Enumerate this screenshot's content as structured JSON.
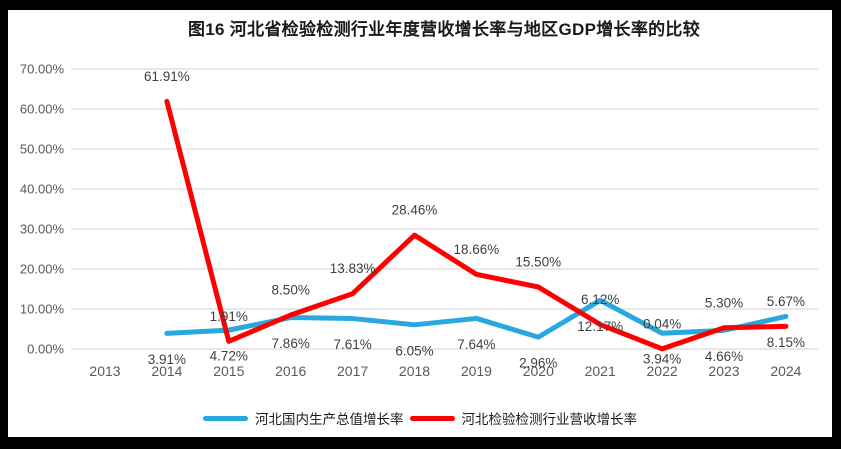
{
  "chart_data": {
    "type": "line",
    "title": "图16 河北省检验检测行业年度营收增长率与地区GDP增长率的比较",
    "categories": [
      "2013",
      "2014",
      "2015",
      "2016",
      "2017",
      "2018",
      "2019",
      "2020",
      "2021",
      "2022",
      "2023",
      "2024"
    ],
    "y_axis": {
      "min": 0,
      "max": 70,
      "step": 10,
      "tick_labels": [
        "0.00%",
        "10.00%",
        "20.00%",
        "30.00%",
        "40.00%",
        "50.00%",
        "60.00%",
        "70.00%"
      ],
      "format": "percent"
    },
    "grid": true,
    "legend_position": "bottom",
    "colors": {
      "gdp_line": "#29a8e0",
      "revenue_line": "#ff0000",
      "gridline": "#d9d9d9",
      "axis_text": "#595959",
      "data_label_text": "#404040",
      "frame": "#000000"
    },
    "series": [
      {
        "name": "河北国内生产总值增长率",
        "color": "#29a8e0",
        "label_side": "below",
        "years": [
          "2014",
          "2015",
          "2016",
          "2017",
          "2018",
          "2019",
          "2020",
          "2021",
          "2022",
          "2023",
          "2024"
        ],
        "values": [
          3.91,
          4.72,
          7.86,
          7.61,
          6.05,
          7.64,
          2.96,
          12.17,
          3.94,
          4.66,
          8.15
        ],
        "labels": [
          "3.91%",
          "4.72%",
          "7.86%",
          "7.61%",
          "6.05%",
          "7.64%",
          "2.96%",
          "12.17%",
          "3.94%",
          "4.66%",
          "8.15%"
        ]
      },
      {
        "name": "河北检验检测行业营收增长率",
        "color": "#ff0000",
        "label_side": "above",
        "years": [
          "2014",
          "2015",
          "2016",
          "2017",
          "2018",
          "2019",
          "2020",
          "2021",
          "2022",
          "2023",
          "2024"
        ],
        "values": [
          61.91,
          1.91,
          8.5,
          13.83,
          28.46,
          18.66,
          15.5,
          6.12,
          0.04,
          5.3,
          5.67
        ],
        "labels": [
          "61.91%",
          "1.91%",
          "8.50%",
          "13.83%",
          "28.46%",
          "18.66%",
          "15.50%",
          "6.12%",
          "0.04%",
          "5.30%",
          "5.67%"
        ]
      }
    ]
  }
}
